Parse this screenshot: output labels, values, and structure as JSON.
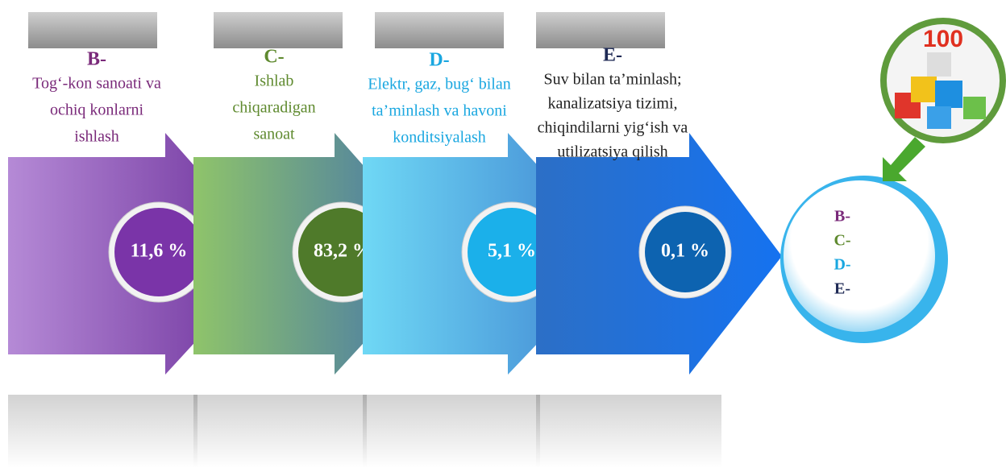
{
  "items": [
    {
      "code": "B-",
      "lines": [
        "Tog‘-kon sanoati va",
        "ochiq konlarni",
        "ishlash"
      ],
      "value": "11,6 %"
    },
    {
      "code": "C-",
      "lines": [
        "Ishlab",
        "chiqaradigan",
        "sanoat"
      ],
      "value": "83,2 %"
    },
    {
      "code": "D-",
      "lines": [
        "Elektr, gaz, bug‘ bilan",
        "ta’minlash va havoni",
        "konditsiyalash"
      ],
      "value": "5,1 %"
    },
    {
      "code": "E-",
      "lines": [
        "Suv bilan ta’minlash;",
        "kanalizatsiya tizimi,",
        "chiqindilarni yig‘ish va",
        "utilizatsiya qilish"
      ],
      "value": "0,1 %"
    }
  ],
  "legend": [
    "B-",
    "C-",
    "D-",
    "E-"
  ],
  "badge": "100"
}
